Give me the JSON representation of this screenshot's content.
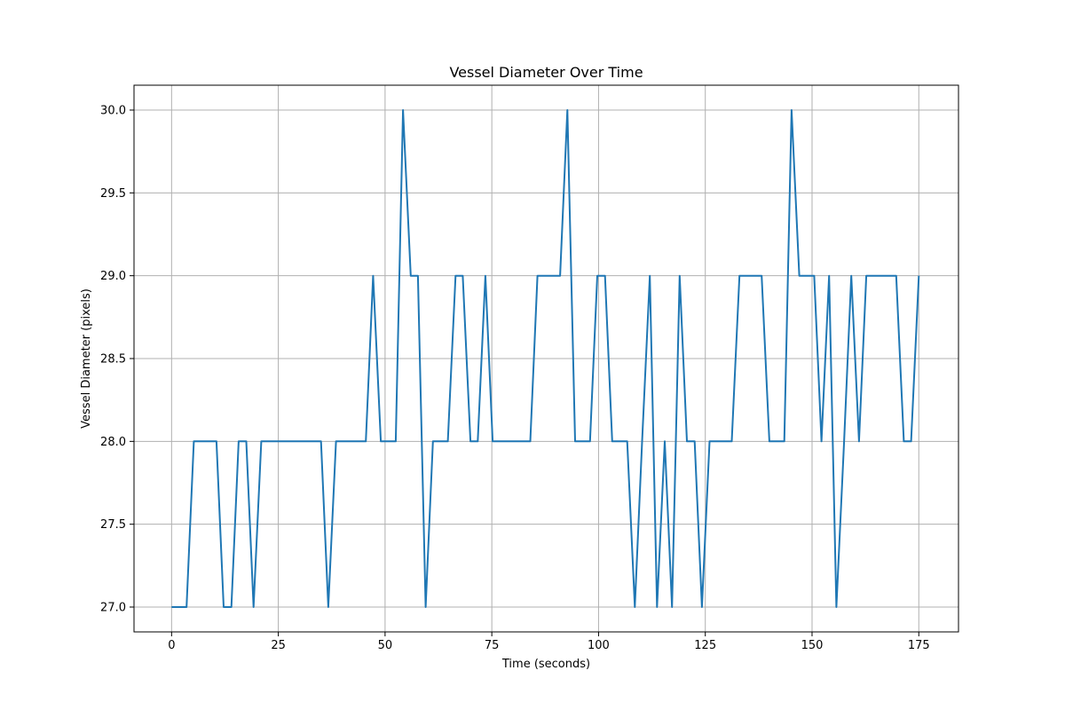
{
  "chart_data": {
    "type": "line",
    "title": "Vessel Diameter Over Time",
    "xlabel": "Time (seconds)",
    "ylabel": "Vessel Diameter (pixels)",
    "xlim": [
      -8.8,
      184.3
    ],
    "ylim": [
      26.85,
      30.15
    ],
    "xticks": [
      0,
      25,
      50,
      75,
      100,
      125,
      150,
      175
    ],
    "yticks": [
      27.0,
      27.5,
      28.0,
      28.5,
      29.0,
      29.5,
      30.0
    ],
    "xtick_labels": [
      "0",
      "25",
      "50",
      "75",
      "100",
      "125",
      "150",
      "175"
    ],
    "ytick_labels": [
      "27.0",
      "27.5",
      "28.0",
      "28.5",
      "29.0",
      "29.5",
      "30.0"
    ],
    "grid": true,
    "line_color": "#1f77b4",
    "series": [
      {
        "x": [
          0,
          1.7,
          3.5,
          5.2,
          7.0,
          8.7,
          10.5,
          12.2,
          14.0,
          15.7,
          17.5,
          19.2,
          21.0,
          22.7,
          24.5,
          26.2,
          28.0,
          29.7,
          31.5,
          33.2,
          35.0,
          36.7,
          38.5,
          40.2,
          42.0,
          43.7,
          45.5,
          47.2,
          49.0,
          50.7,
          52.5,
          54.2,
          56.0,
          57.7,
          59.5,
          61.2,
          63.0,
          64.7,
          66.5,
          68.2,
          70.0,
          71.7,
          73.5,
          75.2,
          77.0,
          78.7,
          80.5,
          82.2,
          84.0,
          85.7,
          87.5,
          89.2,
          91.0,
          92.7,
          94.5,
          96.2,
          98.0,
          99.7,
          101.5,
          103.2,
          105.0,
          106.7,
          108.5,
          110.2,
          112.0,
          113.7,
          115.5,
          117.2,
          119.0,
          120.7,
          122.5,
          124.2,
          126.0,
          127.7,
          129.5,
          131.2,
          133.0,
          134.7,
          136.5,
          138.2,
          140.0,
          141.7,
          143.5,
          145.2,
          147.0,
          148.7,
          150.5,
          152.2,
          154.0,
          155.7,
          157.5,
          159.2,
          161.0,
          162.7,
          164.5,
          166.2,
          168.0,
          169.7,
          171.5,
          173.2,
          175.0
        ],
        "y": [
          27,
          27,
          27,
          28,
          28,
          28,
          28,
          27,
          27,
          28,
          28,
          27,
          28,
          28,
          28,
          28,
          28,
          28,
          28,
          28,
          28,
          27,
          28,
          28,
          28,
          28,
          28,
          29,
          28,
          28,
          28,
          30,
          29,
          29,
          27,
          28,
          28,
          28,
          29,
          29,
          28,
          28,
          29,
          28,
          28,
          28,
          28,
          28,
          28,
          29,
          29,
          29,
          29,
          30,
          28,
          28,
          28,
          29,
          29,
          28,
          28,
          28,
          27,
          28,
          29,
          27,
          28,
          27,
          29,
          28,
          28,
          27,
          28,
          28,
          28,
          28,
          29,
          29,
          29,
          29,
          28,
          28,
          28,
          30,
          29,
          29,
          29,
          28,
          29,
          27,
          28,
          29,
          28,
          29,
          29,
          29,
          29,
          29,
          28,
          28,
          29
        ]
      }
    ]
  }
}
